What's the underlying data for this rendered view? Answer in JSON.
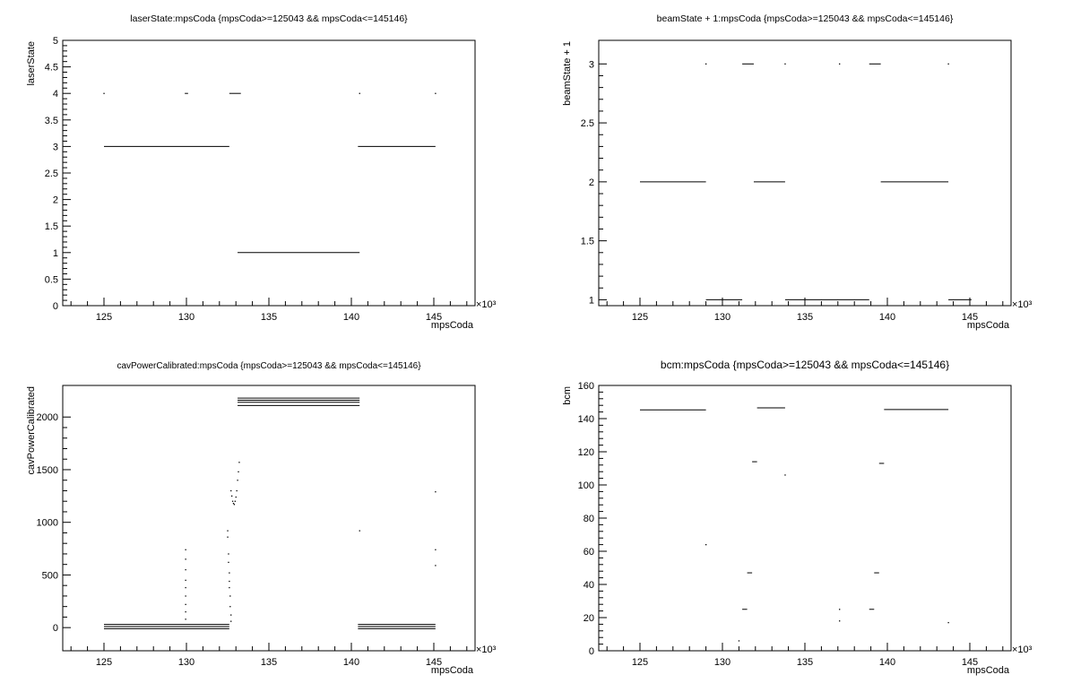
{
  "colors": {
    "axis": "#000000",
    "marker": "#000000",
    "background": "#ffffff"
  },
  "chart_data": [
    {
      "type": "scatter",
      "title": "laserState:mpsCoda {mpsCoda>=125043 && mpsCoda<=145146}",
      "xlabel": "mpsCoda",
      "ylabel": "laserState",
      "x_exponent_label": "×10³",
      "xlim": [
        122.5,
        147.5
      ],
      "ylim": [
        0,
        5
      ],
      "xticks": [
        "125",
        "130",
        "135",
        "140",
        "145"
      ],
      "yticks": [
        "0",
        "0.5",
        "1",
        "1.5",
        "2",
        "2.5",
        "3",
        "3.5",
        "4",
        "4.5",
        "5"
      ],
      "grid": false,
      "segments": [
        {
          "x": [
            125.0,
            132.6
          ],
          "y": 3
        },
        {
          "x": [
            132.6,
            133.3
          ],
          "y": 4
        },
        {
          "x": [
            133.1,
            140.5
          ],
          "y": 1
        },
        {
          "x": [
            140.4,
            145.1
          ],
          "y": 3
        },
        {
          "x": [
            129.9,
            130.1
          ],
          "y": 4
        }
      ],
      "points": [
        {
          "x": 125.0,
          "y": 4
        },
        {
          "x": 140.5,
          "y": 4
        },
        {
          "x": 145.1,
          "y": 4
        }
      ]
    },
    {
      "type": "scatter",
      "title": "beamState + 1:mpsCoda {mpsCoda>=125043 && mpsCoda<=145146}",
      "xlabel": "mpsCoda",
      "ylabel": "beamState + 1",
      "x_exponent_label": "×10³",
      "xlim": [
        122.5,
        147.5
      ],
      "ylim": [
        0.95,
        3.2
      ],
      "xticks": [
        "125",
        "130",
        "135",
        "140",
        "145"
      ],
      "yticks": [
        "1",
        "1.5",
        "2",
        "2.5",
        "3"
      ],
      "grid": false,
      "segments": [
        {
          "x": [
            125.0,
            129.0
          ],
          "y": 2
        },
        {
          "x": [
            129.0,
            131.2
          ],
          "y": 1
        },
        {
          "x": [
            131.2,
            131.9
          ],
          "y": 3
        },
        {
          "x": [
            131.9,
            133.8
          ],
          "y": 2
        },
        {
          "x": [
            133.8,
            138.9
          ],
          "y": 1
        },
        {
          "x": [
            138.9,
            139.6
          ],
          "y": 3
        },
        {
          "x": [
            139.6,
            143.7
          ],
          "y": 2
        },
        {
          "x": [
            143.7,
            145.1
          ],
          "y": 1
        }
      ],
      "points": [
        {
          "x": 129.0,
          "y": 3
        },
        {
          "x": 133.8,
          "y": 3
        },
        {
          "x": 137.1,
          "y": 3
        },
        {
          "x": 143.7,
          "y": 3
        }
      ]
    },
    {
      "type": "scatter",
      "title": "cavPowerCalibrated:mpsCoda {mpsCoda>=125043 && mpsCoda<=145146}",
      "xlabel": "mpsCoda",
      "ylabel": "cavPowerCalibrated",
      "x_exponent_label": "×10³",
      "xlim": [
        122.5,
        147.5
      ],
      "ylim": [
        -220,
        2300
      ],
      "xticks": [
        "125",
        "130",
        "135",
        "140",
        "145"
      ],
      "yticks": [
        "0",
        "500",
        "1000",
        "1500",
        "2000"
      ],
      "grid": false,
      "segments": [
        {
          "x": [
            125.0,
            132.6
          ],
          "y": 30
        },
        {
          "x": [
            125.0,
            132.6
          ],
          "y": 10
        },
        {
          "x": [
            125.0,
            132.6
          ],
          "y": -10
        },
        {
          "x": [
            133.1,
            140.5
          ],
          "y": 2180
        },
        {
          "x": [
            133.1,
            140.5
          ],
          "y": 2160
        },
        {
          "x": [
            133.1,
            140.5
          ],
          "y": 2140
        },
        {
          "x": [
            133.1,
            140.5
          ],
          "y": 2110
        },
        {
          "x": [
            140.4,
            145.1
          ],
          "y": 30
        },
        {
          "x": [
            140.4,
            145.1
          ],
          "y": 10
        },
        {
          "x": [
            140.4,
            145.1
          ],
          "y": -10
        }
      ],
      "points": [
        {
          "x": 129.95,
          "y": 740
        },
        {
          "x": 129.95,
          "y": 650
        },
        {
          "x": 129.95,
          "y": 550
        },
        {
          "x": 129.95,
          "y": 450
        },
        {
          "x": 129.95,
          "y": 380
        },
        {
          "x": 129.95,
          "y": 300
        },
        {
          "x": 129.95,
          "y": 220
        },
        {
          "x": 129.95,
          "y": 150
        },
        {
          "x": 129.95,
          "y": 80
        },
        {
          "x": 132.5,
          "y": 920
        },
        {
          "x": 132.5,
          "y": 860
        },
        {
          "x": 132.55,
          "y": 700
        },
        {
          "x": 132.55,
          "y": 620
        },
        {
          "x": 132.6,
          "y": 520
        },
        {
          "x": 132.6,
          "y": 440
        },
        {
          "x": 132.6,
          "y": 380
        },
        {
          "x": 132.65,
          "y": 300
        },
        {
          "x": 132.65,
          "y": 200
        },
        {
          "x": 132.7,
          "y": 120
        },
        {
          "x": 132.7,
          "y": 60
        },
        {
          "x": 132.7,
          "y": 1300
        },
        {
          "x": 132.75,
          "y": 1250
        },
        {
          "x": 132.8,
          "y": 1200
        },
        {
          "x": 132.85,
          "y": 1180
        },
        {
          "x": 132.9,
          "y": 1170
        },
        {
          "x": 132.95,
          "y": 1200
        },
        {
          "x": 133.0,
          "y": 1240
        },
        {
          "x": 133.05,
          "y": 1300
        },
        {
          "x": 133.1,
          "y": 1400
        },
        {
          "x": 133.15,
          "y": 1480
        },
        {
          "x": 133.2,
          "y": 1570
        },
        {
          "x": 140.5,
          "y": 920
        },
        {
          "x": 145.1,
          "y": 1290
        },
        {
          "x": 145.1,
          "y": 740
        },
        {
          "x": 145.1,
          "y": 590
        }
      ]
    },
    {
      "type": "scatter",
      "title": "bcm:mpsCoda {mpsCoda>=125043 && mpsCoda<=145146}",
      "xlabel": "mpsCoda",
      "ylabel": "bcm",
      "x_exponent_label": "×10³",
      "xlim": [
        122.5,
        147.5
      ],
      "ylim": [
        0,
        160
      ],
      "xticks": [
        "125",
        "130",
        "135",
        "140",
        "145"
      ],
      "yticks": [
        "0",
        "20",
        "40",
        "60",
        "80",
        "100",
        "120",
        "140",
        "160"
      ],
      "grid": false,
      "segments": [
        {
          "x": [
            125.0,
            129.0
          ],
          "y": 145.3
        },
        {
          "x": [
            131.2,
            131.5
          ],
          "y": 25
        },
        {
          "x": [
            131.5,
            131.8
          ],
          "y": 47
        },
        {
          "x": [
            131.8,
            132.1
          ],
          "y": 114
        },
        {
          "x": [
            132.1,
            133.8
          ],
          "y": 146.5
        },
        {
          "x": [
            138.9,
            139.2
          ],
          "y": 25
        },
        {
          "x": [
            139.2,
            139.5
          ],
          "y": 47
        },
        {
          "x": [
            139.5,
            139.8
          ],
          "y": 113
        },
        {
          "x": [
            139.8,
            143.7
          ],
          "y": 145.5
        }
      ],
      "points": [
        {
          "x": 129.0,
          "y": 64
        },
        {
          "x": 131.0,
          "y": 6
        },
        {
          "x": 133.8,
          "y": 106
        },
        {
          "x": 137.1,
          "y": 25
        },
        {
          "x": 137.1,
          "y": 18
        },
        {
          "x": 143.7,
          "y": 17
        }
      ]
    }
  ]
}
